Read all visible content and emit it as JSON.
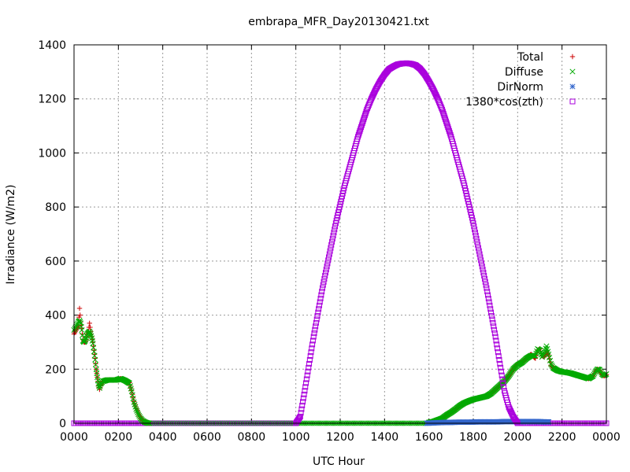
{
  "chart_data": {
    "type": "scatter",
    "title": "embrapa_MFR_Day20130421.txt",
    "xlabel": "UTC Hour",
    "ylabel": "Irradiance (W/m2)",
    "xlim": [
      0,
      24
    ],
    "ylim": [
      0,
      1400
    ],
    "x_tick_labels": [
      "0000",
      "0200",
      "0400",
      "0600",
      "0800",
      "1000",
      "1200",
      "1400",
      "1600",
      "1800",
      "2000",
      "2200",
      "0000"
    ],
    "y_ticks": [
      0,
      200,
      400,
      600,
      800,
      1000,
      1200,
      1400
    ],
    "grid": true,
    "legend_position": "top-right",
    "series": [
      {
        "name": "Total",
        "marker": "plus",
        "color": "#cc0000",
        "points": [
          [
            0.0,
            330
          ],
          [
            0.1,
            345
          ],
          [
            0.2,
            360
          ],
          [
            0.25,
            425
          ],
          [
            0.3,
            375
          ],
          [
            0.35,
            350
          ],
          [
            0.4,
            310
          ],
          [
            0.45,
            300
          ],
          [
            0.5,
            300
          ],
          [
            0.55,
            310
          ],
          [
            0.6,
            330
          ],
          [
            0.65,
            340
          ],
          [
            0.7,
            370
          ],
          [
            0.75,
            340
          ],
          [
            0.8,
            320
          ],
          [
            0.85,
            300
          ],
          [
            0.9,
            270
          ],
          [
            0.95,
            240
          ],
          [
            1.0,
            200
          ],
          [
            1.05,
            170
          ],
          [
            1.1,
            140
          ],
          [
            1.15,
            125
          ],
          [
            1.2,
            140
          ],
          [
            1.3,
            155
          ],
          [
            1.5,
            160
          ],
          [
            1.7,
            160
          ],
          [
            1.9,
            160
          ],
          [
            2.1,
            165
          ],
          [
            2.3,
            160
          ],
          [
            2.5,
            150
          ],
          [
            2.6,
            120
          ],
          [
            2.7,
            80
          ],
          [
            2.8,
            55
          ],
          [
            2.9,
            35
          ],
          [
            3.0,
            20
          ],
          [
            3.1,
            10
          ],
          [
            3.2,
            5
          ],
          [
            3.3,
            2
          ],
          [
            3.4,
            0
          ],
          [
            16.0,
            3
          ],
          [
            16.2,
            6
          ],
          [
            16.4,
            12
          ],
          [
            16.6,
            18
          ],
          [
            16.8,
            30
          ],
          [
            17.0,
            40
          ],
          [
            17.2,
            52
          ],
          [
            17.4,
            65
          ],
          [
            17.6,
            75
          ],
          [
            17.8,
            82
          ],
          [
            18.0,
            88
          ],
          [
            18.2,
            92
          ],
          [
            18.4,
            96
          ],
          [
            18.6,
            100
          ],
          [
            18.8,
            110
          ],
          [
            19.0,
            125
          ],
          [
            19.2,
            140
          ],
          [
            19.4,
            155
          ],
          [
            19.6,
            175
          ],
          [
            19.8,
            200
          ],
          [
            20.0,
            220
          ],
          [
            20.2,
            225
          ],
          [
            20.4,
            240
          ],
          [
            20.6,
            255
          ],
          [
            20.8,
            240
          ],
          [
            20.9,
            270
          ],
          [
            21.0,
            275
          ],
          [
            21.1,
            250
          ],
          [
            21.2,
            245
          ],
          [
            21.3,
            265
          ],
          [
            21.4,
            250
          ],
          [
            21.5,
            215
          ],
          [
            21.6,
            205
          ],
          [
            21.8,
            195
          ],
          [
            22.0,
            190
          ],
          [
            22.2,
            188
          ],
          [
            22.4,
            185
          ],
          [
            22.6,
            180
          ],
          [
            22.8,
            175
          ],
          [
            23.0,
            170
          ],
          [
            23.2,
            165
          ],
          [
            23.4,
            175
          ],
          [
            23.5,
            190
          ],
          [
            23.6,
            200
          ],
          [
            23.7,
            195
          ],
          [
            23.8,
            180
          ],
          [
            23.9,
            175
          ],
          [
            24.0,
            180
          ]
        ]
      },
      {
        "name": "Diffuse",
        "marker": "cross",
        "color": "#00aa00",
        "points": [
          [
            0.0,
            345
          ],
          [
            0.1,
            360
          ],
          [
            0.2,
            375
          ],
          [
            0.25,
            380
          ],
          [
            0.3,
            370
          ],
          [
            0.35,
            345
          ],
          [
            0.4,
            305
          ],
          [
            0.45,
            300
          ],
          [
            0.5,
            305
          ],
          [
            0.55,
            315
          ],
          [
            0.6,
            330
          ],
          [
            0.65,
            335
          ],
          [
            0.7,
            340
          ],
          [
            0.75,
            330
          ],
          [
            0.8,
            315
          ],
          [
            0.85,
            295
          ],
          [
            0.9,
            265
          ],
          [
            0.95,
            235
          ],
          [
            1.0,
            200
          ],
          [
            1.05,
            170
          ],
          [
            1.1,
            145
          ],
          [
            1.15,
            130
          ],
          [
            1.2,
            145
          ],
          [
            1.3,
            155
          ],
          [
            1.5,
            160
          ],
          [
            1.7,
            160
          ],
          [
            1.9,
            160
          ],
          [
            2.1,
            165
          ],
          [
            2.3,
            158
          ],
          [
            2.5,
            148
          ],
          [
            2.6,
            118
          ],
          [
            2.7,
            78
          ],
          [
            2.8,
            52
          ],
          [
            2.9,
            33
          ],
          [
            3.0,
            18
          ],
          [
            3.1,
            9
          ],
          [
            3.2,
            4
          ],
          [
            3.3,
            1
          ],
          [
            3.4,
            0
          ],
          [
            16.0,
            3
          ],
          [
            16.2,
            6
          ],
          [
            16.4,
            12
          ],
          [
            16.6,
            18
          ],
          [
            16.8,
            30
          ],
          [
            17.0,
            40
          ],
          [
            17.2,
            52
          ],
          [
            17.4,
            65
          ],
          [
            17.6,
            75
          ],
          [
            17.8,
            82
          ],
          [
            18.0,
            88
          ],
          [
            18.2,
            92
          ],
          [
            18.4,
            96
          ],
          [
            18.6,
            100
          ],
          [
            18.8,
            110
          ],
          [
            19.0,
            125
          ],
          [
            19.2,
            140
          ],
          [
            19.4,
            155
          ],
          [
            19.6,
            175
          ],
          [
            19.8,
            200
          ],
          [
            20.0,
            215
          ],
          [
            20.2,
            225
          ],
          [
            20.4,
            240
          ],
          [
            20.6,
            250
          ],
          [
            20.8,
            250
          ],
          [
            20.9,
            275
          ],
          [
            21.0,
            270
          ],
          [
            21.1,
            245
          ],
          [
            21.2,
            260
          ],
          [
            21.3,
            285
          ],
          [
            21.4,
            255
          ],
          [
            21.5,
            220
          ],
          [
            21.6,
            205
          ],
          [
            21.8,
            195
          ],
          [
            22.0,
            190
          ],
          [
            22.2,
            188
          ],
          [
            22.4,
            185
          ],
          [
            22.6,
            180
          ],
          [
            22.8,
            175
          ],
          [
            23.0,
            170
          ],
          [
            23.2,
            165
          ],
          [
            23.4,
            175
          ],
          [
            23.5,
            190
          ],
          [
            23.6,
            200
          ],
          [
            23.7,
            198
          ],
          [
            23.8,
            182
          ],
          [
            23.9,
            176
          ],
          [
            24.0,
            182
          ]
        ]
      },
      {
        "name": "DirNorm",
        "marker": "star",
        "color": "#3366cc",
        "points": [
          [
            15.9,
            0
          ],
          [
            16.1,
            1
          ],
          [
            16.4,
            2
          ],
          [
            16.7,
            3
          ],
          [
            17.0,
            3
          ],
          [
            17.3,
            4
          ],
          [
            17.6,
            4
          ],
          [
            17.9,
            4
          ],
          [
            18.2,
            5
          ],
          [
            18.5,
            5
          ],
          [
            18.8,
            5
          ],
          [
            19.1,
            5
          ],
          [
            19.4,
            6
          ],
          [
            19.7,
            6
          ],
          [
            20.0,
            6
          ],
          [
            20.3,
            6
          ],
          [
            20.6,
            6
          ],
          [
            20.9,
            6
          ],
          [
            21.2,
            5
          ],
          [
            21.4,
            5
          ]
        ]
      },
      {
        "name": "1380*cos(zth)",
        "marker": "square",
        "color": "#aa00dd",
        "points": [
          [
            10.0,
            0
          ],
          [
            10.2,
            25
          ],
          [
            10.4,
            120
          ],
          [
            10.6,
            220
          ],
          [
            10.8,
            320
          ],
          [
            11.0,
            410
          ],
          [
            11.2,
            500
          ],
          [
            11.4,
            580
          ],
          [
            11.6,
            660
          ],
          [
            11.8,
            740
          ],
          [
            12.0,
            810
          ],
          [
            12.2,
            880
          ],
          [
            12.4,
            940
          ],
          [
            12.6,
            1000
          ],
          [
            12.8,
            1060
          ],
          [
            13.0,
            1110
          ],
          [
            13.2,
            1160
          ],
          [
            13.4,
            1200
          ],
          [
            13.6,
            1235
          ],
          [
            13.8,
            1265
          ],
          [
            14.0,
            1290
          ],
          [
            14.2,
            1310
          ],
          [
            14.4,
            1320
          ],
          [
            14.6,
            1328
          ],
          [
            14.8,
            1331
          ],
          [
            15.0,
            1332
          ],
          [
            15.2,
            1330
          ],
          [
            15.4,
            1325
          ],
          [
            15.6,
            1312
          ],
          [
            15.8,
            1292
          ],
          [
            16.0,
            1265
          ],
          [
            16.2,
            1235
          ],
          [
            16.4,
            1200
          ],
          [
            16.6,
            1160
          ],
          [
            16.8,
            1110
          ],
          [
            17.0,
            1060
          ],
          [
            17.2,
            1000
          ],
          [
            17.4,
            940
          ],
          [
            17.6,
            880
          ],
          [
            17.8,
            810
          ],
          [
            18.0,
            740
          ],
          [
            18.2,
            660
          ],
          [
            18.4,
            580
          ],
          [
            18.6,
            500
          ],
          [
            18.8,
            410
          ],
          [
            19.0,
            320
          ],
          [
            19.2,
            220
          ],
          [
            19.4,
            120
          ],
          [
            19.6,
            60
          ],
          [
            19.8,
            25
          ],
          [
            20.0,
            0
          ]
        ]
      }
    ]
  }
}
